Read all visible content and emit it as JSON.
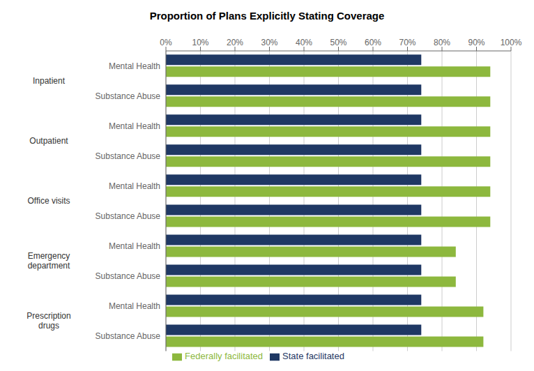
{
  "chart_data": {
    "type": "bar",
    "orientation": "horizontal",
    "title": "Proportion of Plans Explicitly Stating Coverage",
    "categories": [
      "Mental Health",
      "Substance Abuse",
      "Mental Health",
      "Substance Abuse",
      "Mental Health",
      "Substance Abuse",
      "Mental Health",
      "Substance Abuse",
      "Mental Health",
      "Substance Abuse"
    ],
    "group_labels": [
      "Inpatient",
      "Outpatient",
      "Office visits",
      "Emergency\ndepartment",
      "Prescription\ndrugs"
    ],
    "series": [
      {
        "name": "State facilitated",
        "color": "#1f3864",
        "values": [
          74,
          74,
          74,
          74,
          74,
          74,
          74,
          74,
          74,
          74
        ]
      },
      {
        "name": "Federally facilitated",
        "color": "#8db83e",
        "values": [
          94,
          94,
          94,
          94,
          94,
          94,
          84,
          84,
          92,
          92
        ]
      }
    ],
    "xlim": [
      0,
      100
    ],
    "xticks": [
      {
        "value": 0,
        "label": "0%"
      },
      {
        "value": 10,
        "label": "10%"
      },
      {
        "value": 20,
        "label": "20%"
      },
      {
        "value": 30,
        "label": "30%"
      },
      {
        "value": 40,
        "label": "40%"
      },
      {
        "value": 50,
        "label": "50%"
      },
      {
        "value": 60,
        "label": "60%"
      },
      {
        "value": 70,
        "label": "70%"
      },
      {
        "value": 80,
        "label": "80%"
      },
      {
        "value": 90,
        "label": "90%"
      },
      {
        "value": 100,
        "label": "100%"
      }
    ],
    "grid": true,
    "legend": "bottom"
  }
}
